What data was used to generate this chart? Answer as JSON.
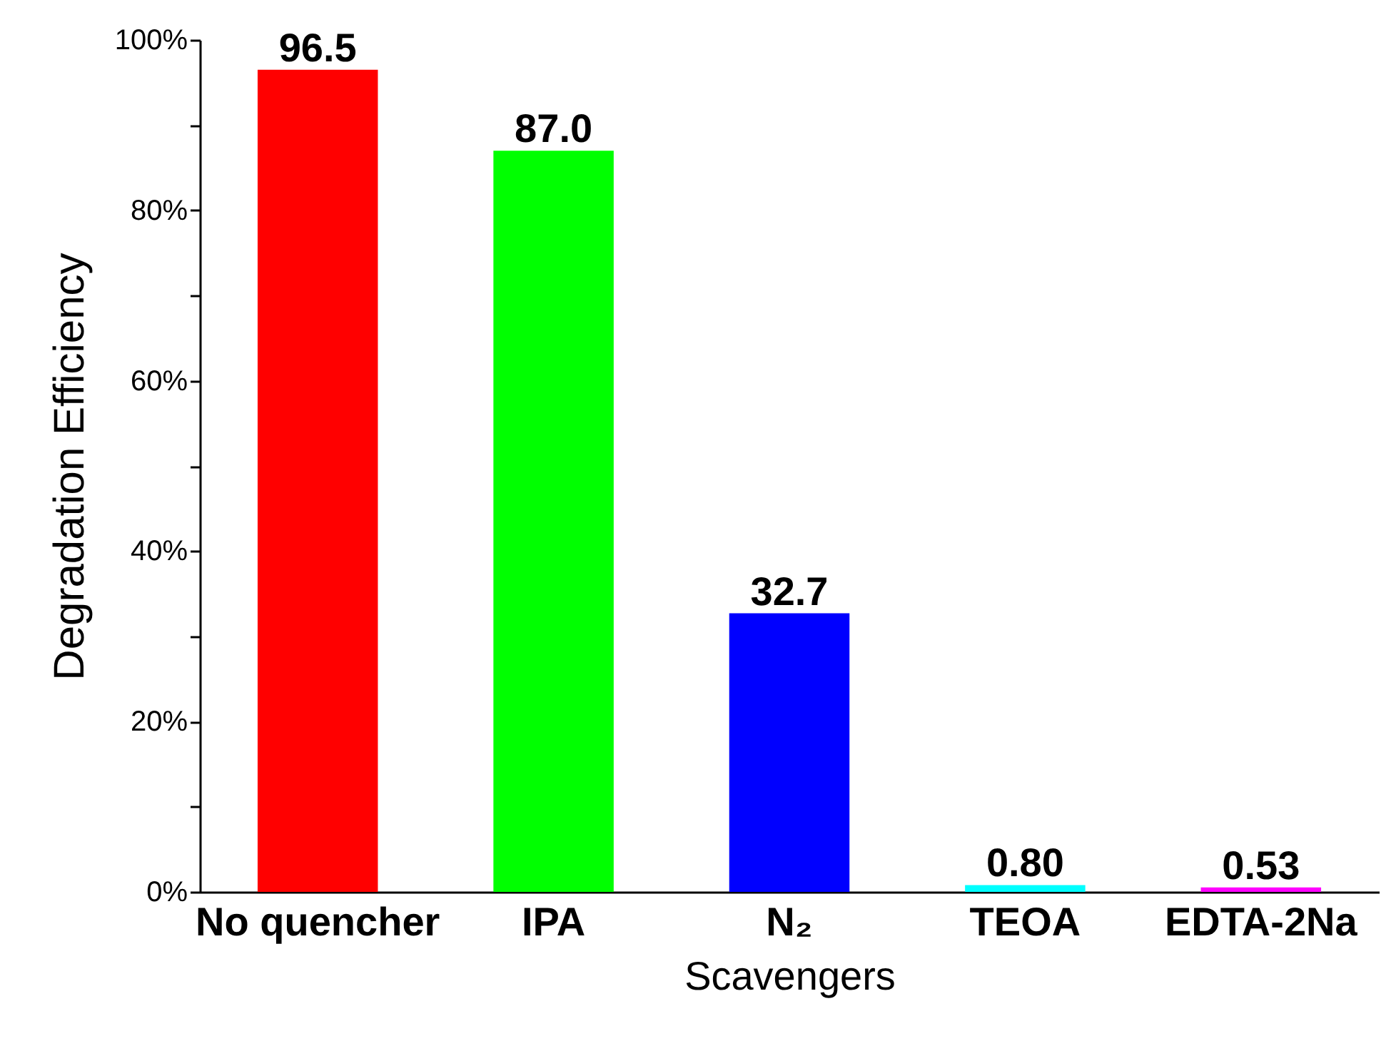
{
  "chart_data": {
    "type": "bar",
    "xlabel": "Scavengers",
    "ylabel": "Degradation Efficiency",
    "categories": [
      "No quencher",
      "IPA",
      "N₂",
      "TEOA",
      "EDTA-2Na"
    ],
    "values": [
      96.5,
      87.0,
      32.7,
      0.8,
      0.53
    ],
    "colors": [
      "#ff0000",
      "#00ff00",
      "#0000ff",
      "#00ffff",
      "#ff00ff"
    ],
    "value_labels": [
      "96.5",
      "87.0",
      "32.7",
      "0.80",
      "0.53"
    ],
    "ylim": [
      0,
      100
    ],
    "yticks": [
      {
        "value": 0,
        "label": "0%"
      },
      {
        "value": 10,
        "label": null
      },
      {
        "value": 20,
        "label": "20%"
      },
      {
        "value": 30,
        "label": null
      },
      {
        "value": 40,
        "label": "40%"
      },
      {
        "value": 50,
        "label": null
      },
      {
        "value": 60,
        "label": "60%"
      },
      {
        "value": 70,
        "label": null
      },
      {
        "value": 80,
        "label": "80%"
      },
      {
        "value": 90,
        "label": null
      },
      {
        "value": 100,
        "label": "100%"
      }
    ],
    "grid": false
  }
}
